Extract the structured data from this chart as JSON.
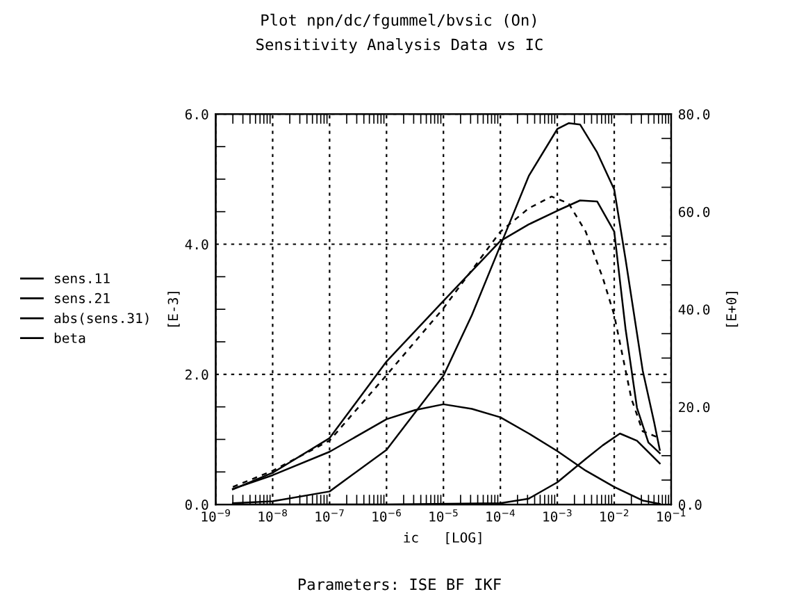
{
  "chart_data": {
    "type": "line",
    "title": "Plot npn/dc/fgummel/bvsic (On)",
    "subtitle": "Sensitivity Analysis Data vs IC",
    "xlabel": "ic   [LOG]",
    "ylabel": "[E-3]",
    "y2label": "[E+0]",
    "annotations": [
      "Parameters: ISE BF IKF"
    ],
    "log": "x",
    "grid": true,
    "legend": "left",
    "line_style": "solid",
    "marker": "none",
    "xlim": [
      1e-09,
      0.1
    ],
    "xticks": [
      {
        "value": 1e-09,
        "label": "10$^{−9}$"
      },
      {
        "value": 1e-08,
        "label": "10$^{−8}$"
      },
      {
        "value": 1e-07,
        "label": "10$^{−7}$"
      },
      {
        "value": 1e-06,
        "label": "10$^{−6}$"
      },
      {
        "value": 1e-05,
        "label": "10$^{−5}$"
      },
      {
        "value": 0.0001,
        "label": "10$^{−4}$"
      },
      {
        "value": 0.001,
        "label": "10$^{−3}$"
      },
      {
        "value": 0.01,
        "label": "10$^{−2}$"
      },
      {
        "value": 0.1,
        "label": "10$^{−1}$"
      }
    ],
    "ylim": [
      0,
      6
    ],
    "yticks": [
      {
        "value": 0,
        "label": "0.0"
      },
      {
        "value": 0.5,
        "label": null
      },
      {
        "value": 1,
        "label": null
      },
      {
        "value": 1.5,
        "label": null
      },
      {
        "value": 2,
        "label": "2.0"
      },
      {
        "value": 2.5,
        "label": null
      },
      {
        "value": 3,
        "label": null
      },
      {
        "value": 3.5,
        "label": null
      },
      {
        "value": 4,
        "label": "4.0"
      },
      {
        "value": 4.5,
        "label": null
      },
      {
        "value": 5,
        "label": null
      },
      {
        "value": 5.5,
        "label": null
      },
      {
        "value": 6,
        "label": "6.0"
      }
    ],
    "y2lim": [
      0,
      80
    ],
    "y2ticks": [
      {
        "value": 0,
        "label": "0.0"
      },
      {
        "value": 5,
        "label": null
      },
      {
        "value": 10,
        "label": null
      },
      {
        "value": 15,
        "label": null
      },
      {
        "value": 20,
        "label": "20.0"
      },
      {
        "value": 25,
        "label": null
      },
      {
        "value": 30,
        "label": null
      },
      {
        "value": 35,
        "label": null
      },
      {
        "value": 40,
        "label": "40.0"
      },
      {
        "value": 45,
        "label": null
      },
      {
        "value": 50,
        "label": null
      },
      {
        "value": 55,
        "label": null
      },
      {
        "value": 60,
        "label": "60.0"
      },
      {
        "value": 65,
        "label": null
      },
      {
        "value": 70,
        "label": null
      },
      {
        "value": 75,
        "label": null
      },
      {
        "value": 80,
        "label": "80.0"
      }
    ],
    "series": [
      {
        "name": "sens.11",
        "color": "#000000",
        "x": [
          2e-09,
          1e-08,
          1e-07,
          1e-06,
          3.16e-06,
          1e-05,
          3.16e-05,
          0.0001,
          0.000316,
          0.001,
          0.00316,
          0.01,
          0.0316,
          0.0631
        ],
        "values": [
          0.24,
          0.45,
          0.81,
          1.31,
          1.45,
          1.54,
          1.47,
          1.34,
          1.09,
          0.82,
          0.52,
          0.27,
          0.06,
          0.01
        ]
      },
      {
        "name": "sens.21",
        "color": "#000000",
        "x": [
          2e-09,
          1e-08,
          1e-07,
          1e-06,
          3.16e-06,
          1e-05,
          3.16e-05,
          0.0001,
          0.000316,
          0.001,
          0.00158,
          0.00251,
          0.00501,
          0.01,
          0.0158,
          0.0316,
          0.0501,
          0.0631
        ],
        "values": [
          0.02,
          0.05,
          0.2,
          0.84,
          1.41,
          1.98,
          2.91,
          3.98,
          5.05,
          5.77,
          5.86,
          5.84,
          5.41,
          4.84,
          3.77,
          2.06,
          1.27,
          0.84
        ]
      },
      {
        "name": "abs(sens.31)",
        "color": "#000000",
        "x": [
          2e-09,
          1e-06,
          0.0001,
          0.000316,
          0.001,
          0.00316,
          0.00631,
          0.0126,
          0.0251,
          0.0631
        ],
        "values": [
          0.0,
          0.0,
          0.02,
          0.09,
          0.34,
          0.7,
          0.91,
          1.09,
          0.98,
          0.63
        ]
      },
      {
        "name": "beta",
        "color": "#000000",
        "axis": "y2",
        "x": [
          2e-09,
          1e-08,
          1e-07,
          1e-06,
          1e-05,
          0.0001,
          0.000316,
          0.001,
          0.00251,
          0.00501,
          0.01,
          0.0158,
          0.0251,
          0.0398,
          0.0631
        ],
        "values": [
          3.1,
          6.5,
          13.6,
          29.3,
          41.7,
          54.0,
          57.4,
          60.2,
          62.3,
          62.1,
          55.9,
          36.0,
          19.8,
          12.7,
          10.5
        ]
      },
      {
        "color": "#000000",
        "axis": "y2",
        "line_style": "dashed",
        "x": [
          2e-09,
          1e-08,
          1e-07,
          1e-06,
          1e-05,
          0.0001,
          0.000316,
          0.000794,
          0.00158,
          0.00316,
          0.00631,
          0.01,
          0.02,
          0.0316,
          0.0631
        ],
        "values": [
          3.6,
          6.9,
          13.1,
          26.5,
          40.2,
          55.9,
          60.7,
          63.1,
          61.7,
          55.9,
          46.4,
          38.8,
          21.7,
          15.0,
          13.6
        ]
      }
    ]
  }
}
